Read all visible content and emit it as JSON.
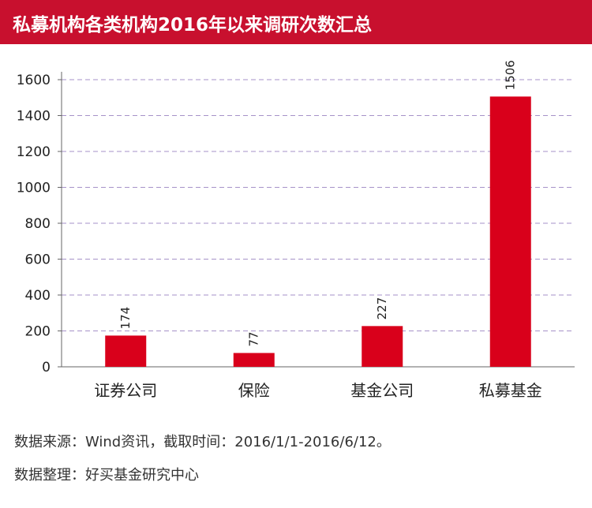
{
  "header": {
    "title": "私募机构各类机构2016年以来调研次数汇总"
  },
  "colors": {
    "accent": "#c8102e",
    "bar": "#d9001b",
    "grid": "#a692c8"
  },
  "chart_data": {
    "type": "bar",
    "title": "私募机构各类机构2016年以来调研次数汇总",
    "categories": [
      "证券公司",
      "保险",
      "基金公司",
      "私募基金"
    ],
    "values": [
      174,
      77,
      227,
      1506
    ],
    "value_labels": [
      "174",
      "77",
      "227",
      "1506"
    ],
    "yticks": [
      "0",
      "200",
      "400",
      "600",
      "800",
      "1000",
      "1200",
      "1400",
      "1600"
    ],
    "ylim": [
      0,
      1600
    ],
    "ystep": 200,
    "xlabel": "",
    "ylabel": "",
    "grid": true,
    "legend": "none"
  },
  "footer": {
    "source": "数据来源：Wind资讯，截取时间：2016/1/1-2016/6/12。",
    "compiler": "数据整理：好买基金研究中心"
  }
}
